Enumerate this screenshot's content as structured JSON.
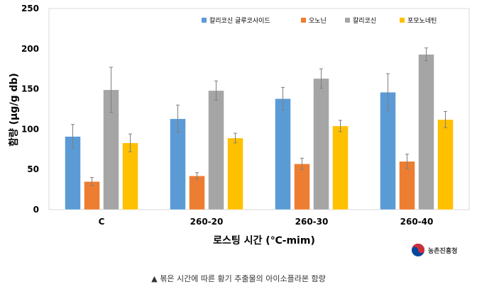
{
  "chart_data": {
    "type": "bar",
    "categories": [
      "C",
      "260-20",
      "260-30",
      "260-40"
    ],
    "series": [
      {
        "name": "칼리코신 글루코사이드",
        "color": "#5b9bd5",
        "values": [
          91,
          113,
          138,
          146
        ],
        "errors": [
          15,
          17,
          14,
          23
        ]
      },
      {
        "name": "오노닌",
        "color": "#ed7d31",
        "values": [
          35,
          42,
          57,
          60
        ],
        "errors": [
          5,
          4,
          7,
          9
        ]
      },
      {
        "name": "칼리코신",
        "color": "#a5a5a5",
        "values": [
          149,
          148,
          163,
          193
        ],
        "errors": [
          28,
          12,
          12,
          8
        ]
      },
      {
        "name": "포모노네틴",
        "color": "#ffc000",
        "values": [
          83,
          89,
          104,
          112
        ],
        "errors": [
          11,
          6,
          7,
          10
        ]
      }
    ],
    "xlabel": "로스팅 시간 (℃-mim)",
    "ylabel": "함량 (μg/g db)",
    "ylim": [
      0,
      250
    ],
    "yticks": [
      0,
      50,
      100,
      150,
      200,
      250
    ],
    "grid": false,
    "legend": "top-right"
  },
  "logo_label": "농촌진흥청",
  "caption": "▲ 볶은 시간에 따른 황기 추출물의 아이소플라본 함량"
}
